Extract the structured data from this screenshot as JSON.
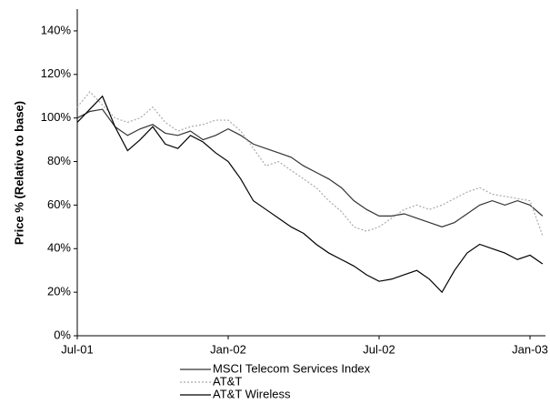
{
  "chart_data": {
    "type": "line",
    "y_label": "Price % (Relative to base)",
    "categories": [
      "Jul-01",
      null,
      null,
      null,
      null,
      null,
      null,
      null,
      null,
      null,
      null,
      null,
      "Jan-02",
      null,
      null,
      null,
      null,
      null,
      null,
      null,
      null,
      null,
      null,
      null,
      "Jul-02",
      null,
      null,
      null,
      null,
      null,
      null,
      null,
      null,
      null,
      null,
      null,
      "Jan-03",
      null
    ],
    "series": [
      {
        "name": "MSCI Telecom Services Index",
        "color": "#333333",
        "dash": "none",
        "values": [
          100,
          103,
          104,
          96,
          92,
          95,
          97,
          93,
          92,
          94,
          90,
          92,
          95,
          92,
          88,
          86,
          84,
          82,
          78,
          75,
          72,
          68,
          62,
          58,
          55,
          55,
          56,
          54,
          52,
          50,
          52,
          56,
          60,
          62,
          60,
          62,
          60,
          55
        ]
      },
      {
        "name": "AT&T",
        "color": "#aaaaaa",
        "dash": "2 2",
        "values": [
          105,
          112,
          106,
          100,
          98,
          100,
          105,
          98,
          94,
          96,
          97,
          99,
          99,
          94,
          86,
          78,
          80,
          76,
          72,
          68,
          62,
          57,
          50,
          48,
          50,
          54,
          58,
          60,
          58,
          60,
          63,
          66,
          68,
          65,
          64,
          63,
          62,
          46
        ]
      },
      {
        "name": "AT&T Wireless",
        "color": "#000000",
        "dash": "none",
        "values": [
          98,
          104,
          110,
          96,
          85,
          90,
          96,
          88,
          86,
          92,
          89,
          84,
          80,
          72,
          62,
          58,
          54,
          50,
          47,
          42,
          38,
          35,
          32,
          28,
          25,
          26,
          28,
          30,
          26,
          20,
          30,
          38,
          42,
          40,
          38,
          35,
          37,
          33
        ]
      }
    ],
    "ylim": [
      0,
      150
    ],
    "yticks": [
      {
        "value": 0,
        "label": "0%"
      },
      {
        "value": 20,
        "label": "20%"
      },
      {
        "value": 40,
        "label": "40%"
      },
      {
        "value": 60,
        "label": "60%"
      },
      {
        "value": 80,
        "label": "80%"
      },
      {
        "value": 100,
        "label": "100%"
      },
      {
        "value": 120,
        "label": "120%"
      },
      {
        "value": 140,
        "label": "140%"
      }
    ],
    "legend": "bottom"
  }
}
